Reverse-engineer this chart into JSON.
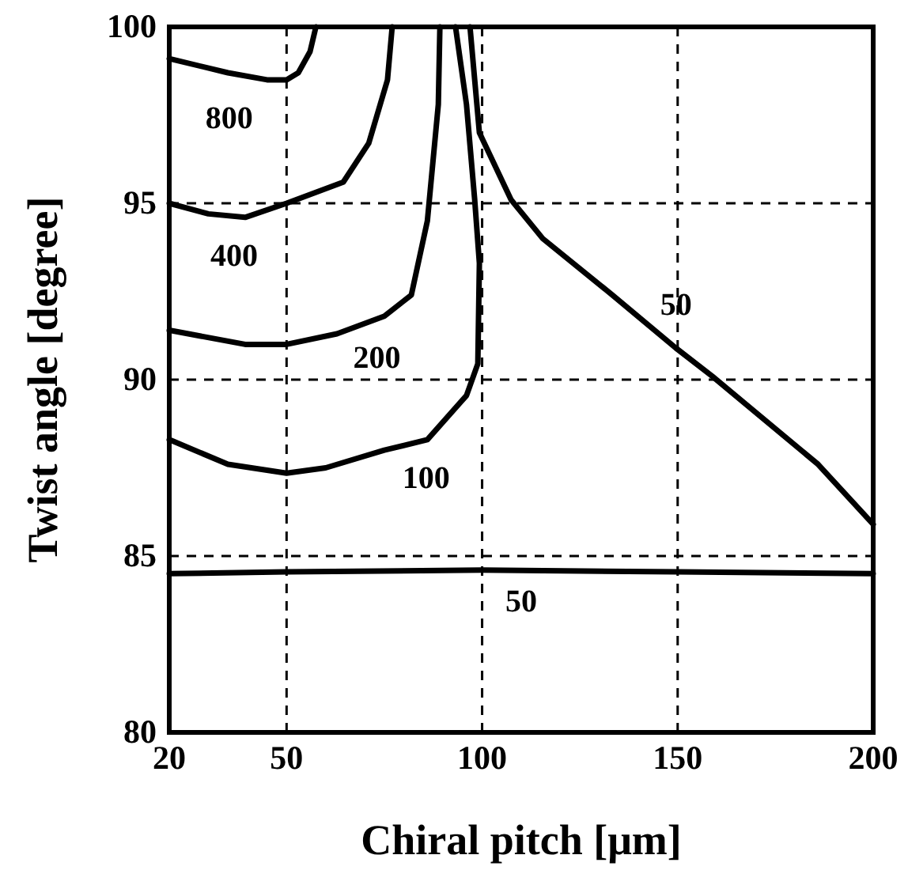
{
  "chart_data": {
    "type": "line",
    "xlabel": "Chiral pitch [μm]",
    "ylabel": "Twist angle [degree]",
    "xlim": [
      20,
      200
    ],
    "xticks": [
      20,
      50,
      100,
      150,
      200
    ],
    "ylim": [
      80,
      100
    ],
    "yticks": [
      80,
      85,
      90,
      95,
      100
    ],
    "grid": true,
    "marker": "none",
    "line_style": "solid",
    "series": [
      {
        "name": "800",
        "color": "#000000",
        "x": [
          20,
          35,
          45,
          50,
          53,
          56,
          57.5
        ],
        "values": [
          99.1,
          98.7,
          98.5,
          98.5,
          98.7,
          99.3,
          100
        ]
      },
      {
        "name": "400",
        "color": "#000000",
        "x": [
          20,
          30,
          39.4,
          50,
          64.5,
          71,
          75.8,
          77
        ],
        "values": [
          95.0,
          94.7,
          94.6,
          95.0,
          95.6,
          96.7,
          98.5,
          100
        ]
      },
      {
        "name": "200",
        "color": "#000000",
        "x": [
          20,
          39.4,
          50,
          62.9,
          75,
          81.9,
          86,
          88.8,
          89.2
        ],
        "values": [
          91.4,
          91.0,
          91.0,
          91.3,
          91.8,
          92.4,
          94.5,
          97.8,
          100
        ]
      },
      {
        "name": "100",
        "color": "#000000",
        "x": [
          20,
          35,
          50,
          60,
          75,
          86,
          96,
          98.9,
          99.3,
          98.1,
          96,
          93.2
        ],
        "values": [
          88.3,
          87.6,
          87.35,
          87.5,
          88.0,
          88.3,
          89.55,
          90.45,
          93.3,
          95.1,
          97.8,
          100
        ]
      },
      {
        "name": "50",
        "color": "#000000",
        "x": [
          96.9,
          99.3,
          107.4,
          115.5,
          133.3,
          149.5,
          158.8,
          185.9,
          200
        ],
        "values": [
          100,
          97.0,
          95.1,
          94.0,
          92.4,
          90.9,
          90.1,
          87.6,
          85.9
        ]
      },
      {
        "name": "50",
        "color": "#000000",
        "x": [
          20,
          50,
          100,
          150,
          200
        ],
        "values": [
          84.5,
          84.55,
          84.6,
          84.55,
          84.5
        ]
      }
    ]
  }
}
